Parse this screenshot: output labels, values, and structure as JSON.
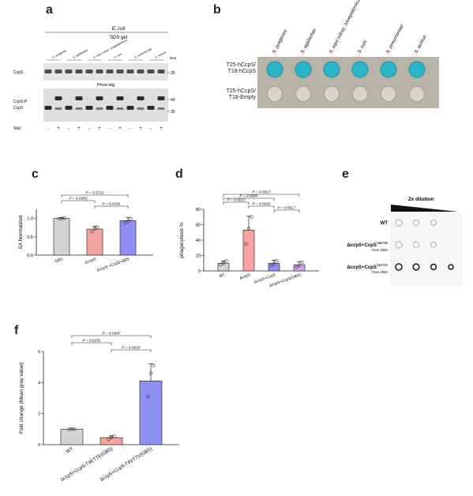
{
  "panels": {
    "a": {
      "letter": "a",
      "header": "E. coli",
      "sds_label": "SDS gel",
      "phos_label": "Phos-tag",
      "kda": "kDa",
      "species": [
        "S. pyogenes",
        "S. agalactiae",
        "S. equi subsp. zooepidemicus",
        "S. suis",
        "S. pneumoniae",
        "S. aureus"
      ],
      "row_ccps": "CcpS",
      "row_ccps_p": "CcpS-P",
      "row_ccps2": "CcpS",
      "stk1_label": "Stk1",
      "stk1_signs": [
        "-",
        "+",
        "-",
        "+",
        "-",
        "+",
        "-",
        "+",
        "-",
        "+",
        "-",
        "+"
      ],
      "mw_sds": "35",
      "mw_phos_top": "40",
      "mw_phos_bottom": "35"
    },
    "b": {
      "letter": "b",
      "species": [
        "S. pyogenes",
        "S. agalactiae",
        "S. equi subsp. zooepidemicus",
        "S. suis",
        "S. pneumoniae",
        "S. aureus"
      ],
      "row1_line1": "T25-hCcpS/",
      "row1_line2": "T18-hCcpS",
      "row2_line1": "T25-hCcpS/",
      "row2_line2": "T18-Empty"
    },
    "c": {
      "letter": "c",
      "chart_data": {
        "type": "bar",
        "categories": [
          "GBS",
          "ΔccpS",
          "ΔccpS +CcpS-GBS"
        ],
        "values": [
          1.0,
          0.71,
          0.94
        ],
        "errors": [
          0.02,
          0.08,
          0.09
        ],
        "points": [
          [
            0.99,
            1.0,
            1.01
          ],
          [
            0.64,
            0.72,
            0.76
          ],
          [
            0.88,
            0.92,
            0.99
          ]
        ],
        "colors": [
          "#d4d4d4",
          "#f4a3a0",
          "#8f8ff2"
        ],
        "ylabel": "SA Normalized",
        "ylim": [
          0,
          1.25
        ],
        "yticks": [
          "0.0",
          "0.5",
          "1.0"
        ],
        "pvalues": [
          {
            "label": "P = 0.5722",
            "from": 0,
            "to": 2
          },
          {
            "label": "P = 0.0083",
            "from": 0,
            "to": 1
          },
          {
            "label": "P = 0.0281",
            "from": 1,
            "to": 2
          }
        ]
      }
    },
    "d": {
      "letter": "d",
      "chart_data": {
        "type": "bar",
        "categories": [
          "WT",
          "ΔccpS",
          "ΔccpS+CcpS",
          "ΔccpS+CcpS(GBS)"
        ],
        "values": [
          10,
          53,
          10,
          8
        ],
        "errors": [
          3,
          18,
          4,
          4
        ],
        "points": [
          [
            8,
            10,
            13
          ],
          [
            35,
            55,
            70
          ],
          [
            7,
            9,
            13
          ],
          [
            5,
            7,
            11
          ]
        ],
        "colors": [
          "#d4d4d4",
          "#f4a3a0",
          "#8f8ff2",
          "#d3a3ef"
        ],
        "ylabel": "phagocytosis %",
        "ylim": [
          0,
          80
        ],
        "yticks": [
          "0",
          "20",
          "40",
          "60",
          "80"
        ],
        "pvalues": [
          {
            "label": "P = 0.9917",
            "from": 0,
            "to": 3
          },
          {
            "label": "P = 0.9995",
            "from": 0,
            "to": 2
          },
          {
            "label": "P = 0.0013",
            "from": 0,
            "to": 1
          },
          {
            "label": "P = 0.0016",
            "from": 1,
            "to": 2
          },
          {
            "label": "P = 0.9617",
            "from": 2,
            "to": 3
          }
        ]
      }
    },
    "e": {
      "letter": "e",
      "dilution": "2x  dilution",
      "rows": [
        {
          "main": "WT",
          "sup": "",
          "sub": ""
        },
        {
          "main": "ΔccpS+CcpS",
          "sup": "T4ETTE",
          "sub": "from GBS"
        },
        {
          "main": "ΔccpS+CcpS",
          "sup": "T4VTTV",
          "sub": "from GBS"
        }
      ]
    },
    "f": {
      "letter": "f",
      "chart_data": {
        "type": "bar",
        "categories": [
          "WT",
          "ΔccpS+CcpS-T4ETTE(GBS)",
          "ΔccpS+CcpS-T4VTTV(GBS)"
        ],
        "values": [
          1.0,
          0.45,
          4.1
        ],
        "errors": [
          0.02,
          0.12,
          1.1
        ],
        "points": [
          [
            1.0,
            1.0,
            1.0
          ],
          [
            0.35,
            0.45,
            0.55
          ],
          [
            3.1,
            4.6,
            5.1
          ]
        ],
        "colors": [
          "#d4d4d4",
          "#f4a3a0",
          "#8f8ff2"
        ],
        "ylabel": "Fold change (Mean gray value)",
        "ylim": [
          0,
          6
        ],
        "yticks": [
          "0",
          "2",
          "4",
          "6"
        ],
        "pvalues": [
          {
            "label": "P = 0.0047",
            "from": 0,
            "to": 2
          },
          {
            "label": "P = 0.6251",
            "from": 0,
            "to": 1
          },
          {
            "label": "P = 0.0020",
            "from": 1,
            "to": 2
          }
        ]
      }
    }
  }
}
